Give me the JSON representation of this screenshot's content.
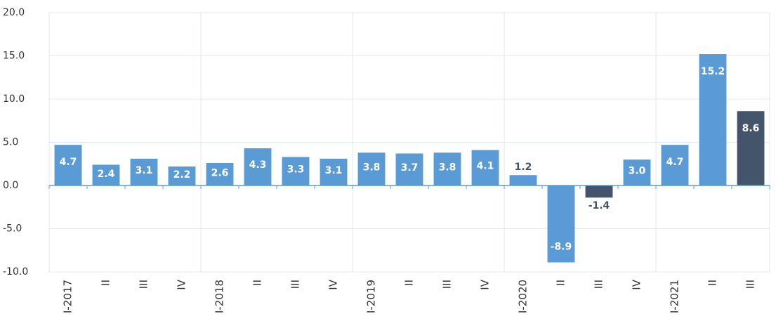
{
  "chart_data": {
    "type": "bar",
    "categories": [
      "I-2017",
      "II",
      "III",
      "IV",
      "I-2018",
      "II",
      "III",
      "IV",
      "I-2019",
      "II",
      "III",
      "IV",
      "I-2020",
      "II",
      "III",
      "IV",
      "I-2021",
      "II",
      "III"
    ],
    "values": [
      4.7,
      2.4,
      3.1,
      2.2,
      2.6,
      4.3,
      3.3,
      3.1,
      3.8,
      3.7,
      3.8,
      4.1,
      1.2,
      -8.9,
      -1.4,
      3.0,
      4.7,
      15.2,
      8.6
    ],
    "value_labels": [
      "4.7",
      "2.4",
      "3.1",
      "2.2",
      "2.6",
      "4.3",
      "3.3",
      "3.1",
      "3.8",
      "3.7",
      "3.8",
      "4.1",
      "1.2",
      "-8.9",
      "-1.4",
      "3.0",
      "4.7",
      "15.2",
      "8.6"
    ],
    "colors": [
      "#5b9bd5",
      "#5b9bd5",
      "#5b9bd5",
      "#5b9bd5",
      "#5b9bd5",
      "#5b9bd5",
      "#5b9bd5",
      "#5b9bd5",
      "#5b9bd5",
      "#5b9bd5",
      "#5b9bd5",
      "#5b9bd5",
      "#5b9bd5",
      "#5b9bd5",
      "#44546a",
      "#5b9bd5",
      "#5b9bd5",
      "#5b9bd5",
      "#44546a"
    ],
    "ylim": [
      -10,
      20
    ],
    "yticks": [
      {
        "value": -10,
        "label": "-10.0"
      },
      {
        "value": -5,
        "label": "-5.0"
      },
      {
        "value": 0,
        "label": "0.0"
      },
      {
        "value": 5,
        "label": "5.0"
      },
      {
        "value": 10,
        "label": "10.0"
      },
      {
        "value": 15,
        "label": "15.0"
      },
      {
        "value": 20,
        "label": "20.0"
      }
    ],
    "grid": true
  }
}
